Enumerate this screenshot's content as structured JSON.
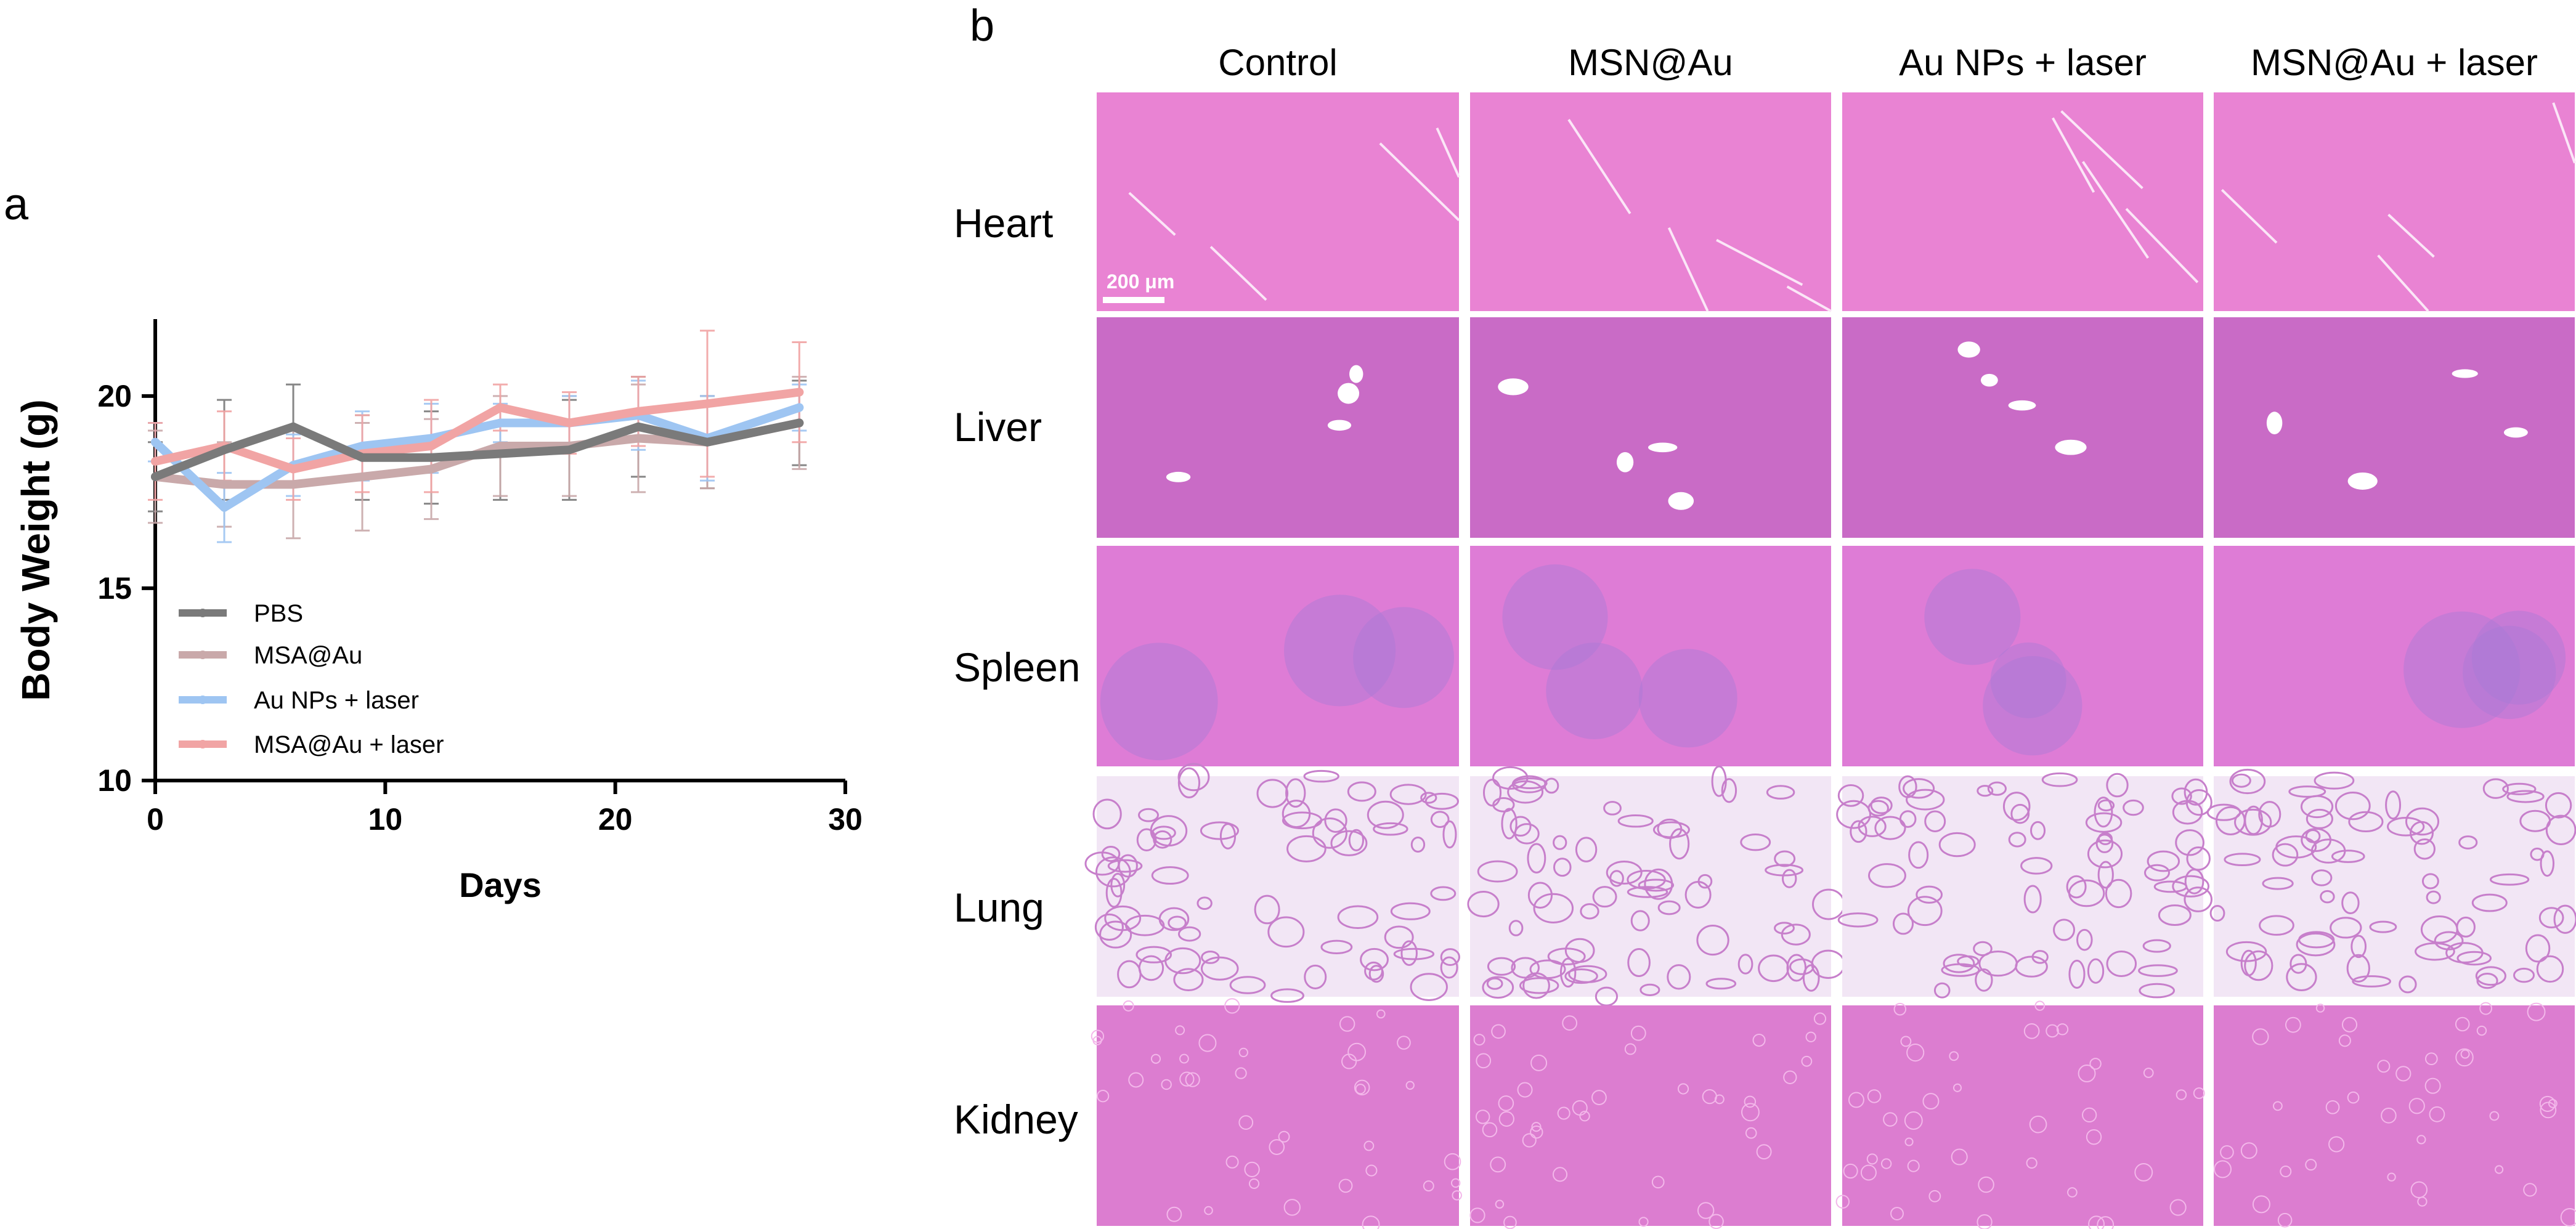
{
  "panels": {
    "a_label": "a",
    "b_label": "b"
  },
  "chart_data": {
    "type": "line",
    "title": "",
    "xlabel": "Days",
    "ylabel": "Body Weight (g)",
    "xlim": [
      0,
      30
    ],
    "ylim": [
      10,
      22
    ],
    "x_ticks": [
      0,
      10,
      20,
      30
    ],
    "y_ticks": [
      10,
      15,
      20
    ],
    "grid": false,
    "legend_position": "lower-left inside",
    "series": [
      {
        "name": "PBS",
        "color": "#7a7a7a",
        "x": [
          0,
          3,
          6,
          9,
          12,
          15,
          18,
          21,
          24,
          28
        ],
        "y": [
          17.9,
          18.6,
          19.2,
          18.4,
          18.4,
          18.5,
          18.6,
          19.2,
          18.8,
          19.3
        ],
        "err": [
          0.9,
          1.3,
          1.1,
          1.1,
          1.2,
          1.2,
          1.3,
          1.3,
          1.2,
          1.1
        ]
      },
      {
        "name": "MSA@Au",
        "color": "#c9a9aa",
        "x": [
          0,
          3,
          6,
          9,
          12,
          15,
          18,
          21,
          24,
          28
        ],
        "y": [
          17.9,
          17.7,
          17.7,
          17.9,
          18.1,
          18.7,
          18.7,
          18.9,
          18.8,
          19.3
        ],
        "err": [
          1.2,
          1.1,
          1.4,
          1.4,
          1.3,
          1.3,
          1.3,
          1.4,
          1.2,
          1.2
        ]
      },
      {
        "name": "Au NPs + laser",
        "color": "#9ec5f2",
        "x": [
          0,
          3,
          6,
          9,
          12,
          15,
          18,
          21,
          24,
          28
        ],
        "y": [
          18.8,
          17.1,
          18.2,
          18.7,
          18.9,
          19.3,
          19.3,
          19.5,
          18.9,
          19.7
        ],
        "err": [
          0.5,
          0.9,
          0.8,
          0.9,
          0.9,
          0.5,
          0.7,
          0.9,
          1.1,
          0.6
        ]
      },
      {
        "name": "MSA@Au + laser",
        "color": "#f1a4a4",
        "x": [
          0,
          3,
          6,
          9,
          12,
          15,
          18,
          21,
          24,
          28
        ],
        "y": [
          18.3,
          18.7,
          18.1,
          18.5,
          18.7,
          19.7,
          19.3,
          19.6,
          19.8,
          20.1
        ],
        "err": [
          1.0,
          0.9,
          0.8,
          1.0,
          1.2,
          0.6,
          0.8,
          0.9,
          1.9,
          1.3
        ]
      }
    ]
  },
  "histology": {
    "columns": [
      "Control",
      "MSN@Au",
      "Au NPs + laser",
      "MSN@Au + laser"
    ],
    "rows": [
      "Heart",
      "Liver",
      "Spleen",
      "Lung",
      "Kidney"
    ],
    "scale_bar": "200 μm",
    "tile_colors": {
      "Heart": "#e983d3",
      "Liver": "#c96bc6",
      "Spleen": "#de7cd6",
      "Lung": "#f2e6f5",
      "Kidney": "#dc7dd0"
    }
  }
}
